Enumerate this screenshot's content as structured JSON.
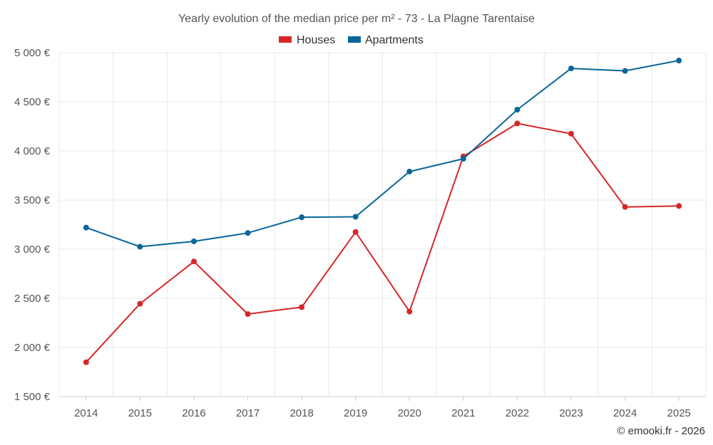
{
  "chart_data": {
    "type": "line",
    "title": "Yearly evolution of the median price per m² - 73 - La Plagne Tarentaise",
    "categories": [
      "2014",
      "2015",
      "2016",
      "2017",
      "2018",
      "2019",
      "2020",
      "2021",
      "2022",
      "2023",
      "2024",
      "2025"
    ],
    "series": [
      {
        "name": "Houses",
        "color": "#d62728",
        "values": [
          1850,
          2445,
          2875,
          2340,
          2410,
          3175,
          2365,
          3945,
          4280,
          4175,
          3430,
          3440
        ]
      },
      {
        "name": "Apartments",
        "color": "#0a6699",
        "values": [
          3220,
          3025,
          3080,
          3165,
          3325,
          3330,
          3790,
          3920,
          4420,
          4840,
          4815,
          4920
        ]
      }
    ],
    "ylim": [
      1500,
      5000
    ],
    "yticks": [
      1500,
      2000,
      2500,
      3000,
      3500,
      4000,
      4500,
      5000
    ],
    "ytick_labels": [
      "1 500 €",
      "2 000 €",
      "2 500 €",
      "3 000 €",
      "3 500 €",
      "4 000 €",
      "4 500 €",
      "5 000 €"
    ],
    "xlabel": "",
    "ylabel": "",
    "grid": true,
    "legend_position": "top-center"
  },
  "credit": "© emooki.fr - 2026"
}
